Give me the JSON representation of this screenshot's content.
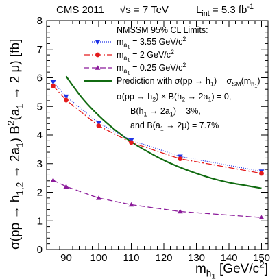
{
  "chart_data": {
    "type": "line",
    "header": {
      "experiment": "CMS 2011",
      "sqrts": "√s = 7 TeV",
      "lumi_base": "L",
      "lumi_sub": "int",
      "lumi_value": " = 5.3 fb",
      "lumi_exp": "-1"
    },
    "xlabel": {
      "base": "m",
      "sub": "h",
      "subsub": "1",
      "unit": " [GeV/c",
      "unit_exp": "2",
      "unit_close": "]"
    },
    "ylabel": {
      "prefix": "σ(pp → h",
      "sub1": "1,2",
      "middle": " → 2a",
      "sub2": "1",
      "middle2": ") B",
      "exp": "2",
      "suffix": "(a",
      "sub3": "1",
      "suffix2": " → 2 μ) [fb]"
    },
    "xlim": [
      84,
      152
    ],
    "ylim": [
      0,
      8
    ],
    "xticks": [
      90,
      100,
      110,
      120,
      130,
      140,
      150
    ],
    "yticks": [
      0,
      1,
      2,
      3,
      4,
      5,
      6,
      7,
      8
    ],
    "legend_title": "NMSSM 95% CL Limits:",
    "series": [
      {
        "name_base": "m",
        "name_sub": "a",
        "name_subsub": "1",
        "name_value": " = 3.55 GeV/c",
        "name_exp": "2",
        "color": "#1f33e6",
        "marker": "triangle-down",
        "dash": "1,2",
        "x": [
          86,
          90,
          100,
          110,
          125,
          150
        ],
        "y": [
          5.85,
          5.35,
          4.42,
          3.82,
          3.25,
          2.73
        ]
      },
      {
        "name_base": "m",
        "name_sub": "a",
        "name_subsub": "1",
        "name_value": " = 2 GeV/c",
        "name_exp": "2",
        "color": "#e41a1c",
        "marker": "circle",
        "dash": "9,3,2,3",
        "x": [
          86,
          90,
          100,
          110,
          125,
          150
        ],
        "y": [
          5.72,
          5.22,
          4.32,
          3.74,
          3.17,
          2.66
        ]
      },
      {
        "name_base": "m",
        "name_sub": "a",
        "name_subsub": "1",
        "name_value": " = 0.25 GeV/c",
        "name_exp": "2",
        "color": "#8b1a9a",
        "marker": "triangle-up",
        "dash": "8,4",
        "x": [
          86,
          90,
          100,
          110,
          125,
          150
        ],
        "y": [
          2.42,
          2.2,
          1.8,
          1.57,
          1.33,
          1.12
        ]
      },
      {
        "name_lines": [
          "Prediction with σ(pp → h",
          "σ(pp → h",
          "B(h",
          "and B(a"
        ],
        "name_full": [
          {
            "parts": [
              [
                "Prediction with σ(pp → h",
                ""
              ],
              [
                "1",
                "sub"
              ],
              [
                ") = σ",
                ""
              ],
              [
                "SM",
                "sub"
              ],
              [
                "(m",
                ""
              ],
              [
                "h",
                "sub"
              ],
              [
                "1",
                "subsub"
              ],
              [
                ")",
                ""
              ]
            ]
          },
          {
            "parts": [
              [
                "σ(pp → h",
                ""
              ],
              [
                "2",
                "sub"
              ],
              [
                ") × B(h",
                ""
              ],
              [
                "2",
                "sub"
              ],
              [
                " → 2a",
                ""
              ],
              [
                "1",
                "sub"
              ],
              [
                ") = 0,",
                ""
              ]
            ]
          },
          {
            "parts": [
              [
                "B(h",
                ""
              ],
              [
                "1",
                "sub"
              ],
              [
                " → 2a",
                ""
              ],
              [
                "1",
                "sub"
              ],
              [
                ") = 3%,",
                ""
              ]
            ]
          },
          {
            "parts": [
              [
                "and B(a",
                ""
              ],
              [
                "1",
                "sub"
              ],
              [
                " → 2μ) = 7.7%",
                ""
              ]
            ]
          }
        ],
        "color": "#116b11",
        "marker": "none",
        "dash": "none",
        "x": [
          90,
          95,
          100,
          105,
          110,
          115,
          120,
          125,
          130,
          135,
          140,
          145,
          150
        ],
        "y": [
          6.05,
          5.28,
          4.68,
          4.18,
          3.76,
          3.42,
          3.12,
          2.87,
          2.66,
          2.48,
          2.34,
          2.24,
          2.14
        ]
      }
    ]
  }
}
